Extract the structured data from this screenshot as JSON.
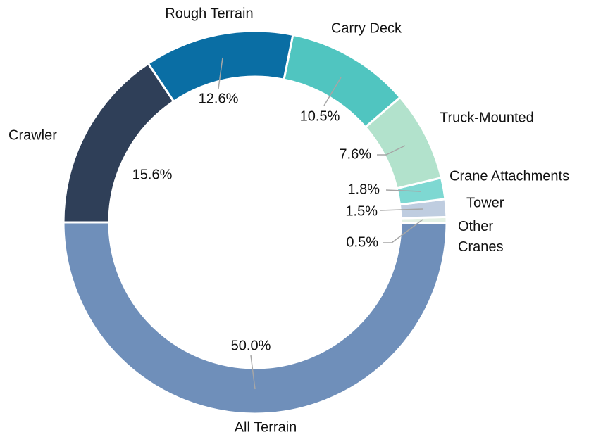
{
  "chart_data": {
    "type": "donut",
    "categories": [
      "All Terrain",
      "Other Cranes",
      "Tower",
      "Crane Attachments",
      "Truck-Mounted",
      "Carry Deck",
      "Rough Terrain",
      "Crawler"
    ],
    "values": [
      50,
      0.5,
      1.5,
      1.8,
      7.6,
      10.5,
      12.6,
      15.6
    ],
    "value_labels": [
      "50.0%",
      "0.5%",
      "1.5%",
      "1.8%",
      "7.6%",
      "10.5%",
      "12.6%",
      "15.6%"
    ],
    "colors": [
      "#6f8fba",
      "#e4f1e4",
      "#bfcde0",
      "#7ed8d2",
      "#b2e2cc",
      "#50c5c0",
      "#0a6ea4",
      "#2f3f58"
    ]
  }
}
